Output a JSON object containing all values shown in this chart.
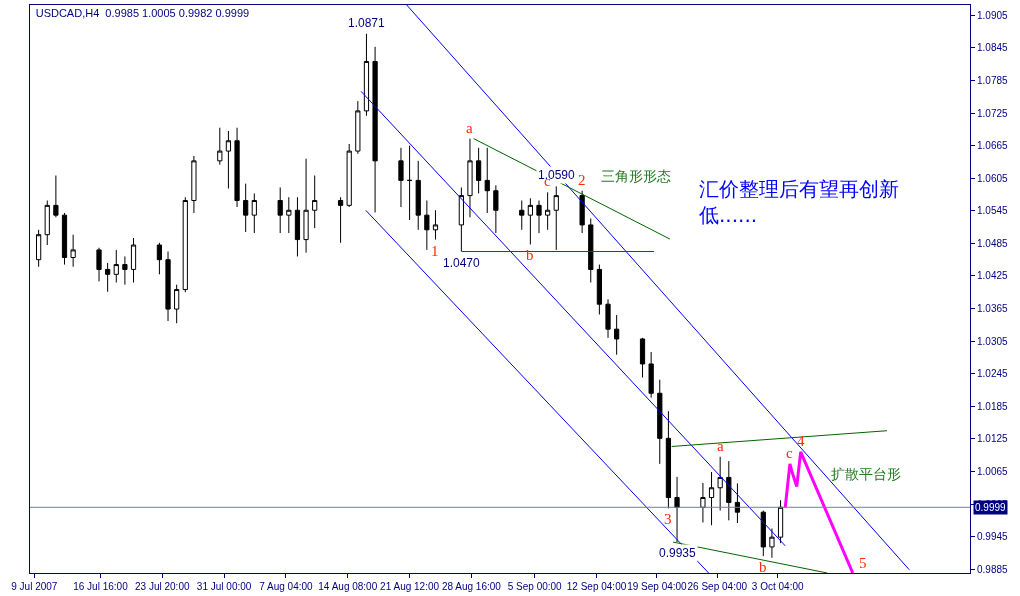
{
  "chart_data": {
    "type": "candlestick",
    "title": "USDCAD,H4  0.9985 1.0005 0.9982 0.9999",
    "color": "#000000",
    "x": [
      "2007-07-09T12:00",
      "2007-07-10T12:00",
      "2007-07-11T12:00",
      "2007-07-12T12:00",
      "2007-07-13T12:00",
      "2007-07-16T12:00",
      "2007-07-17T12:00",
      "2007-07-18T12:00",
      "2007-07-19T12:00",
      "2007-07-20T12:00",
      "2007-07-23T12:00",
      "2007-07-24T12:00",
      "2007-07-25T12:00",
      "2007-07-26T12:00",
      "2007-07-27T12:00",
      "2007-07-30T12:00",
      "2007-07-31T12:00",
      "2007-08-01T12:00",
      "2007-08-02T12:00",
      "2007-08-03T12:00",
      "2007-08-06T12:00",
      "2007-08-07T12:00",
      "2007-08-08T12:00",
      "2007-08-09T12:00",
      "2007-08-10T12:00",
      "2007-08-13T12:00",
      "2007-08-14T12:00",
      "2007-08-15T12:00",
      "2007-08-16T12:00",
      "2007-08-17T12:00",
      "2007-08-20T12:00",
      "2007-08-21T12:00",
      "2007-08-22T12:00",
      "2007-08-23T12:00",
      "2007-08-24T12:00",
      "2007-08-27T12:00",
      "2007-08-28T12:00",
      "2007-08-29T12:00",
      "2007-08-30T12:00",
      "2007-08-31T12:00",
      "2007-09-03T12:00",
      "2007-09-04T12:00",
      "2007-09-05T12:00",
      "2007-09-06T12:00",
      "2007-09-07T12:00",
      "2007-09-10T12:00",
      "2007-09-11T12:00",
      "2007-09-12T12:00",
      "2007-09-13T12:00",
      "2007-09-14T12:00",
      "2007-09-17T12:00",
      "2007-09-18T12:00",
      "2007-09-19T12:00",
      "2007-09-20T12:00",
      "2007-09-21T12:00",
      "2007-09-24T12:00",
      "2007-09-25T12:00",
      "2007-09-26T12:00",
      "2007-09-27T12:00",
      "2007-09-28T12:00",
      "2007-10-01T12:00",
      "2007-10-02T12:00",
      "2007-10-03T12:00"
    ],
    "ohlc": [
      [
        1.0455,
        1.051,
        1.0442,
        1.0501
      ],
      [
        1.0501,
        1.0564,
        1.0482,
        1.0555
      ],
      [
        1.0555,
        1.061,
        1.0533,
        1.0537
      ],
      [
        1.0537,
        1.0541,
        1.0446,
        1.0459
      ],
      [
        1.0459,
        1.0501,
        1.0442,
        1.0473
      ],
      [
        1.0473,
        1.0477,
        1.0415,
        1.0437
      ],
      [
        1.0437,
        1.0449,
        1.0396,
        1.0428
      ],
      [
        1.0428,
        1.0473,
        1.0413,
        1.0446
      ],
      [
        1.0446,
        1.0461,
        1.0409,
        1.0437
      ],
      [
        1.0437,
        1.0495,
        1.0413,
        1.0482
      ],
      [
        1.0482,
        1.0486,
        1.0428,
        1.0455
      ],
      [
        1.0455,
        1.047,
        1.0342,
        1.0364
      ],
      [
        1.0364,
        1.0409,
        1.0338,
        1.04
      ],
      [
        1.04,
        1.057,
        1.0395,
        1.0564
      ],
      [
        1.0564,
        1.0646,
        1.0541,
        1.0637
      ],
      [
        1.0637,
        1.0698,
        1.063,
        1.0655
      ],
      [
        1.0655,
        1.0692,
        1.0586,
        1.0674
      ],
      [
        1.0674,
        1.0698,
        1.0552,
        1.0564
      ],
      [
        1.0564,
        1.0595,
        1.0506,
        1.0537
      ],
      [
        1.0537,
        1.0577,
        1.0504,
        1.0564
      ],
      [
        1.0564,
        1.0588,
        1.0504,
        1.0537
      ],
      [
        1.0537,
        1.057,
        1.0504,
        1.0546
      ],
      [
        1.0546,
        1.057,
        1.0461,
        1.0492
      ],
      [
        1.0492,
        1.0641,
        1.0468,
        1.0546
      ],
      [
        1.0546,
        1.061,
        1.0513,
        1.0564
      ],
      [
        1.0564,
        1.057,
        1.0486,
        1.0555
      ],
      [
        1.0555,
        1.0668,
        1.0552,
        1.0655
      ],
      [
        1.0655,
        1.0747,
        1.065,
        1.0729
      ],
      [
        1.0729,
        1.0871,
        1.072,
        1.082
      ],
      [
        1.082,
        1.0847,
        1.0542,
        1.0637
      ],
      [
        1.0637,
        1.0661,
        1.0552,
        1.0601
      ],
      [
        1.0601,
        1.0665,
        1.0528,
        1.0601
      ],
      [
        1.0601,
        1.0637,
        1.051,
        1.0537
      ],
      [
        1.0537,
        1.0564,
        1.0473,
        1.051
      ],
      [
        1.051,
        1.0546,
        1.0492,
        1.0519
      ],
      [
        1.0519,
        1.0588,
        1.047,
        1.0573
      ],
      [
        1.0573,
        1.0678,
        1.0533,
        1.0637
      ],
      [
        1.0637,
        1.0661,
        1.0577,
        1.0601
      ],
      [
        1.0601,
        1.0661,
        1.0541,
        1.0582
      ],
      [
        1.0582,
        1.0592,
        1.0504,
        1.0546
      ],
      [
        1.0546,
        1.0564,
        1.051,
        1.0537
      ],
      [
        1.0537,
        1.0568,
        1.0483,
        1.0555
      ],
      [
        1.0555,
        1.0564,
        1.0504,
        1.0537
      ],
      [
        1.0537,
        1.0579,
        1.051,
        1.0546
      ],
      [
        1.0546,
        1.059,
        1.0473,
        1.0573
      ],
      [
        1.0573,
        1.0582,
        1.0504,
        1.0519
      ],
      [
        1.0519,
        1.0531,
        1.0413,
        1.0437
      ],
      [
        1.0437,
        1.0446,
        1.0354,
        1.0373
      ],
      [
        1.0373,
        1.0382,
        1.0311,
        1.0327
      ],
      [
        1.0327,
        1.0353,
        1.028,
        1.0309
      ],
      [
        1.0309,
        1.0311,
        1.0238,
        1.0263
      ],
      [
        1.0263,
        1.0285,
        1.0201,
        1.0209
      ],
      [
        1.0209,
        1.0234,
        1.0079,
        1.0126
      ],
      [
        1.0126,
        1.0176,
        0.9997,
        1.0017
      ],
      [
        1.0017,
        1.0055,
        0.9935,
        0.9999
      ],
      [
        0.9999,
        1.0044,
        0.9971,
        1.0017
      ],
      [
        1.0017,
        1.0064,
        0.9966,
        1.0035
      ],
      [
        1.0035,
        1.0092,
        0.9993,
        1.0054
      ],
      [
        1.0054,
        1.0084,
        0.9975,
        1.0008
      ],
      [
        1.0008,
        1.0043,
        0.997,
        0.999
      ],
      [
        0.999,
        0.9993,
        0.9909,
        0.9926
      ],
      [
        0.9926,
        0.996,
        0.9906,
        0.9944
      ],
      [
        0.9944,
        1.0012,
        0.9933,
        0.9999
      ]
    ],
    "series": [
      {
        "type": "line",
        "color": "#0000ff",
        "x": [
          "2007-08-21T04:00",
          "2007-10-18T10:00"
        ],
        "values": [
          1.0924,
          0.9884
        ]
      },
      {
        "type": "line",
        "color": "#0000ff",
        "x": [
          "2007-08-15T21:00",
          "2007-10-04T01:00"
        ],
        "values": [
          1.0765,
          0.9928
        ]
      },
      {
        "type": "line",
        "color": "#0000ff",
        "x": [
          "2007-08-16T10:00",
          "2007-09-25T04:00"
        ],
        "values": [
          1.0546,
          0.9878
        ]
      },
      {
        "type": "line",
        "color": "#006400",
        "x": [
          "2007-08-28T22:00",
          "2007-09-20T16:00"
        ],
        "values": [
          1.0678,
          1.0493
        ]
      },
      {
        "type": "line",
        "color": "#006400",
        "x": [
          "2007-08-27T13:00",
          "2007-09-18T20:00"
        ],
        "values": [
          1.047,
          1.047
        ]
      },
      {
        "type": "line",
        "color": "#006400",
        "x": [
          "2007-09-20T21:00",
          "2007-10-15T20:00"
        ],
        "values": [
          1.0111,
          1.014
        ]
      },
      {
        "type": "line",
        "color": "#006400",
        "x": [
          "2007-09-21T01:00",
          "2007-10-08T22:00"
        ],
        "values": [
          0.9935,
          0.9878
        ]
      },
      {
        "type": "line",
        "color": "#ff00ff",
        "x": [
          "2007-10-04T01:00",
          "2007-10-04T14:00",
          "2007-10-04T19:00",
          "2007-10-05T09:00",
          "2007-10-05T20:00",
          "2007-10-11T21:00"
        ],
        "values": [
          0.9999,
          1.0079,
          1.0066,
          1.0037,
          1.0101,
          0.9878
        ]
      }
    ],
    "ref_lines": [
      {
        "axis": "y",
        "value": 0.9999,
        "label": "0.9999",
        "color": "#708090"
      }
    ],
    "annotations": [
      {
        "text": "1.0871",
        "x": "2007-08-16T12:00",
        "y": 1.0871
      },
      {
        "text": "1.0470",
        "x": "2007-08-27T12:00",
        "y": 1.047
      },
      {
        "text": "1.0590",
        "x": "2007-09-07T12:00",
        "y": 1.059
      },
      {
        "text": "0.9935",
        "x": "2007-09-21T12:00",
        "y": 0.9935
      },
      {
        "text": "1",
        "x": "2007-08-24T12:00",
        "y": 1.0492
      },
      {
        "text": "a",
        "x": "2007-08-28T12:00",
        "y": 1.0678
      },
      {
        "text": "b",
        "x": "2007-09-04T12:00",
        "y": 1.0483
      },
      {
        "text": "c",
        "x": "2007-09-06T12:00",
        "y": 1.0579
      },
      {
        "text": "2",
        "x": "2007-09-10T12:00",
        "y": 1.0582
      },
      {
        "text": "3",
        "x": "2007-09-20T12:00",
        "y": 0.9997
      },
      {
        "text": "a",
        "x": "2007-09-26T12:00",
        "y": 1.0092
      },
      {
        "text": "b",
        "x": "2007-10-01T12:00",
        "y": 0.9909
      },
      {
        "text": "c",
        "x": "2007-10-04T14:00",
        "y": 1.0079
      },
      {
        "text": "4",
        "x": "2007-10-05T20:00",
        "y": 1.0101
      },
      {
        "text": "5",
        "x": "2007-10-11T21:00",
        "y": 0.9878
      },
      "三角形形态",
      "扩散平台形",
      "汇价整理后有望再创新低......"
    ],
    "xlim": [
      "2007-07-08T12:00",
      "2007-10-25T11:00"
    ],
    "xticks": [
      {
        "value": "2007-07-09T00:00",
        "label": "9 Jul 2007"
      },
      {
        "value": "2007-07-16T16:00",
        "label": "16 Jul 16:00"
      },
      {
        "value": "2007-07-23T20:00",
        "label": "23 Jul 20:00"
      },
      {
        "value": "2007-07-31T00:00",
        "label": "31 Jul 00:00"
      },
      {
        "value": "2007-08-07T04:00",
        "label": "7 Aug 04:00"
      },
      {
        "value": "2007-08-14T08:00",
        "label": "14 Aug 08:00"
      },
      {
        "value": "2007-08-21T12:00",
        "label": "21 Aug 12:00"
      },
      {
        "value": "2007-08-28T16:00",
        "label": "28 Aug 16:00"
      },
      {
        "value": "2007-09-05T00:00",
        "label": "5 Sep 00:00"
      },
      {
        "value": "2007-09-12T04:00",
        "label": "12 Sep 04:00"
      },
      {
        "value": "2007-09-19T04:00",
        "label": "19 Sep 04:00"
      },
      {
        "value": "2007-09-26T04:00",
        "label": "26 Sep 04:00"
      },
      {
        "value": "2007-10-03T04:00",
        "label": "3 Oct 04:00"
      }
    ],
    "ylim": [
      0.9878,
      1.0924
    ],
    "yticks": [
      1.0905,
      1.0845,
      1.0785,
      1.0725,
      1.0665,
      1.0605,
      1.0545,
      1.0485,
      1.0425,
      1.0365,
      1.0305,
      1.0245,
      1.0185,
      1.0125,
      1.0065,
      1.0005,
      0.9945,
      0.9885
    ],
    "tick_labels": "xy"
  }
}
